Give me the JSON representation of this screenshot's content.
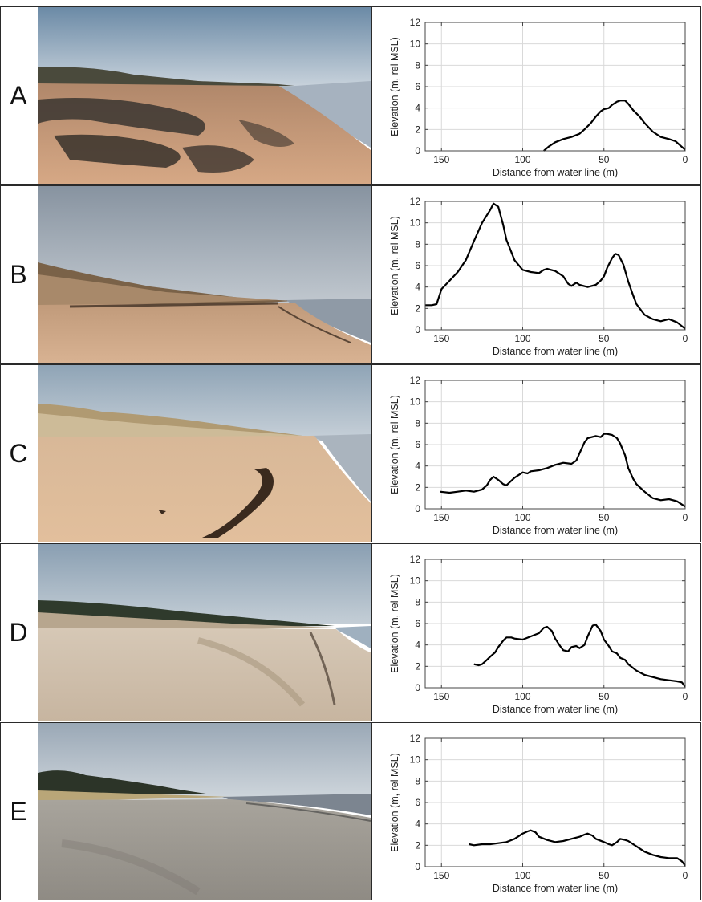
{
  "panels": [
    {
      "letter": "A",
      "scene": "beach-dark-wrack"
    },
    {
      "letter": "B",
      "scene": "beach-high-dune"
    },
    {
      "letter": "C",
      "scene": "beach-sandy-dune"
    },
    {
      "letter": "D",
      "scene": "beach-pale-flat"
    },
    {
      "letter": "E",
      "scene": "beach-grey-flat"
    }
  ],
  "colors": {
    "profile_line": "#000000",
    "grid": "#d9d9d9",
    "frame": "#2a2a2a"
  },
  "chart_data": [
    {
      "type": "line",
      "panel": "A",
      "xlabel": "Distance from water line (m)",
      "ylabel": "Elevation (m, rel MSL)",
      "xlim": [
        160,
        0
      ],
      "x_reversed": true,
      "ylim": [
        0,
        12
      ],
      "xticks": [
        150,
        100,
        50,
        0
      ],
      "yticks": [
        0,
        2,
        4,
        6,
        8,
        10,
        12
      ],
      "grid": true,
      "x": [
        87,
        84,
        80,
        75,
        70,
        65,
        62,
        58,
        55,
        52,
        50,
        47,
        45,
        42,
        40,
        37,
        35,
        32,
        28,
        25,
        20,
        15,
        10,
        6,
        3,
        0
      ],
      "y": [
        0,
        0.4,
        0.8,
        1.1,
        1.3,
        1.6,
        2.0,
        2.6,
        3.2,
        3.7,
        3.9,
        4.0,
        4.3,
        4.6,
        4.7,
        4.7,
        4.4,
        3.8,
        3.2,
        2.6,
        1.8,
        1.3,
        1.1,
        0.9,
        0.5,
        0.1
      ]
    },
    {
      "type": "line",
      "panel": "B",
      "xlabel": "Distance from water line (m)",
      "ylabel": "Elevation (m, rel MSL)",
      "xlim": [
        160,
        0
      ],
      "x_reversed": true,
      "ylim": [
        0,
        12
      ],
      "xticks": [
        150,
        100,
        50,
        0
      ],
      "yticks": [
        0,
        2,
        4,
        6,
        8,
        10,
        12
      ],
      "grid": true,
      "x": [
        160,
        156,
        153,
        150,
        145,
        140,
        135,
        130,
        125,
        120,
        118,
        115,
        112,
        110,
        105,
        100,
        95,
        90,
        87,
        85,
        80,
        75,
        72,
        70,
        67,
        65,
        60,
        55,
        52,
        50,
        48,
        45,
        43,
        41,
        38,
        35,
        32,
        30,
        25,
        20,
        15,
        10,
        5,
        0
      ],
      "y": [
        2.3,
        2.3,
        2.4,
        3.8,
        4.6,
        5.4,
        6.5,
        8.3,
        10.0,
        11.2,
        11.8,
        11.5,
        9.8,
        8.4,
        6.5,
        5.6,
        5.4,
        5.3,
        5.6,
        5.7,
        5.5,
        5.0,
        4.3,
        4.1,
        4.4,
        4.2,
        4.0,
        4.2,
        4.6,
        5.0,
        5.8,
        6.7,
        7.1,
        7.0,
        6.1,
        4.5,
        3.2,
        2.4,
        1.4,
        1.0,
        0.8,
        1.0,
        0.7,
        0.1
      ]
    },
    {
      "type": "line",
      "panel": "C",
      "xlabel": "Distance from water line (m)",
      "ylabel": "Elevation (m, rel MSL)",
      "xlim": [
        160,
        0
      ],
      "x_reversed": true,
      "ylim": [
        0,
        12
      ],
      "xticks": [
        150,
        100,
        50,
        0
      ],
      "yticks": [
        0,
        2,
        4,
        6,
        8,
        10,
        12
      ],
      "grid": true,
      "x": [
        151,
        145,
        140,
        135,
        130,
        125,
        122,
        120,
        118,
        115,
        112,
        110,
        105,
        100,
        97,
        95,
        90,
        85,
        80,
        75,
        70,
        67,
        65,
        62,
        60,
        55,
        52,
        50,
        48,
        45,
        42,
        40,
        37,
        35,
        32,
        30,
        25,
        20,
        15,
        10,
        5,
        0
      ],
      "y": [
        1.6,
        1.5,
        1.6,
        1.7,
        1.6,
        1.8,
        2.2,
        2.7,
        3.0,
        2.7,
        2.3,
        2.2,
        2.9,
        3.4,
        3.3,
        3.5,
        3.6,
        3.8,
        4.1,
        4.3,
        4.2,
        4.5,
        5.2,
        6.2,
        6.6,
        6.8,
        6.7,
        7.0,
        7.0,
        6.9,
        6.6,
        6.1,
        5.0,
        3.8,
        2.8,
        2.3,
        1.6,
        1.0,
        0.8,
        0.9,
        0.7,
        0.2
      ]
    },
    {
      "type": "line",
      "panel": "D",
      "xlabel": "Distance from water line (m)",
      "ylabel": "Elevation (m, rel MSL)",
      "xlim": [
        160,
        0
      ],
      "x_reversed": true,
      "ylim": [
        0,
        12
      ],
      "xticks": [
        150,
        100,
        50,
        0
      ],
      "yticks": [
        0,
        2,
        4,
        6,
        8,
        10,
        12
      ],
      "grid": true,
      "x": [
        130,
        127,
        125,
        122,
        120,
        117,
        115,
        112,
        110,
        107,
        105,
        100,
        95,
        90,
        87,
        85,
        82,
        80,
        77,
        75,
        72,
        70,
        67,
        65,
        62,
        60,
        57,
        55,
        52,
        50,
        47,
        45,
        42,
        40,
        37,
        35,
        30,
        25,
        20,
        15,
        10,
        5,
        2,
        0
      ],
      "y": [
        2.2,
        2.1,
        2.2,
        2.6,
        2.9,
        3.3,
        3.8,
        4.4,
        4.7,
        4.7,
        4.6,
        4.5,
        4.8,
        5.1,
        5.6,
        5.7,
        5.3,
        4.6,
        3.9,
        3.5,
        3.4,
        3.8,
        3.9,
        3.7,
        4.0,
        4.8,
        5.8,
        5.9,
        5.3,
        4.5,
        3.9,
        3.4,
        3.2,
        2.8,
        2.6,
        2.2,
        1.6,
        1.2,
        1.0,
        0.8,
        0.7,
        0.6,
        0.5,
        0.1
      ]
    },
    {
      "type": "line",
      "panel": "E",
      "xlabel": "Distance from water line (m)",
      "ylabel": "Elevation (m, rel MSL)",
      "xlim": [
        160,
        0
      ],
      "x_reversed": true,
      "ylim": [
        0,
        12
      ],
      "xticks": [
        150,
        100,
        50,
        0
      ],
      "yticks": [
        0,
        2,
        4,
        6,
        8,
        10,
        12
      ],
      "grid": true,
      "x": [
        133,
        130,
        125,
        120,
        115,
        110,
        105,
        100,
        97,
        95,
        92,
        90,
        85,
        80,
        75,
        70,
        65,
        62,
        60,
        57,
        55,
        50,
        47,
        45,
        42,
        40,
        37,
        35,
        30,
        25,
        20,
        15,
        10,
        5,
        2,
        0
      ],
      "y": [
        2.1,
        2.0,
        2.1,
        2.1,
        2.2,
        2.3,
        2.6,
        3.1,
        3.3,
        3.4,
        3.2,
        2.8,
        2.5,
        2.3,
        2.4,
        2.6,
        2.8,
        3.0,
        3.1,
        2.9,
        2.6,
        2.3,
        2.1,
        2.0,
        2.3,
        2.6,
        2.5,
        2.4,
        1.9,
        1.4,
        1.1,
        0.9,
        0.8,
        0.8,
        0.5,
        0.1
      ]
    }
  ]
}
